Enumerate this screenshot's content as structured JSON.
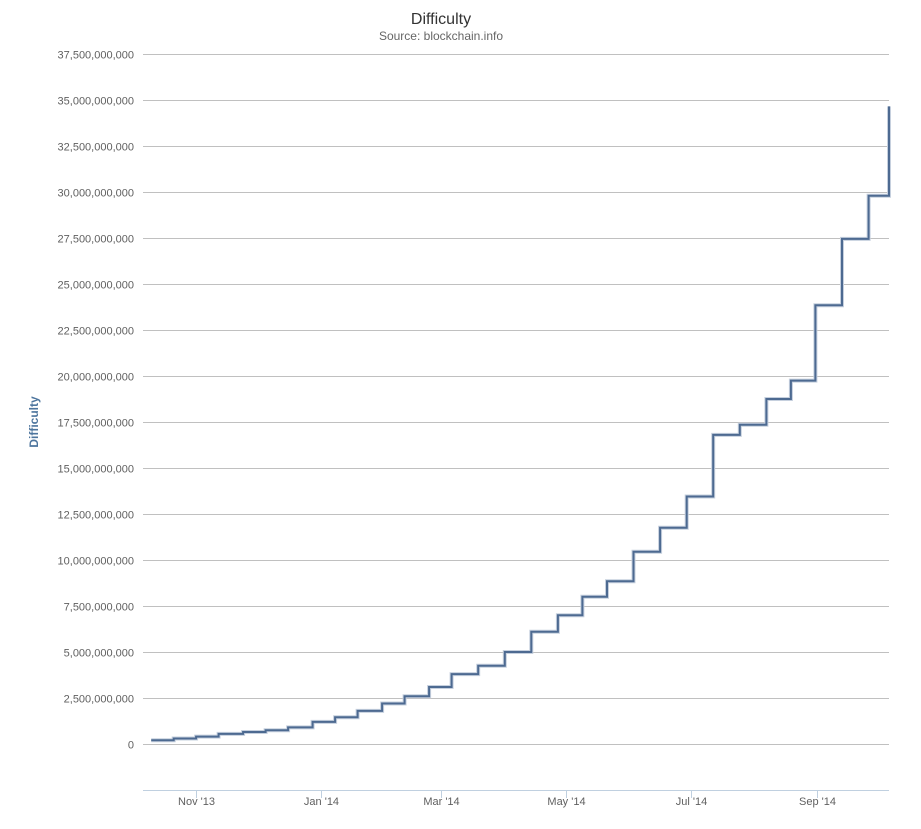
{
  "chart_data": {
    "type": "line",
    "step": true,
    "title": "Difficulty",
    "subtitle": "Source: blockchain.info",
    "ylabel": "Difficulty",
    "xlabel": "",
    "line_color": "#4d6a91",
    "grid": true,
    "legend": "none",
    "ylim": [
      -2500000000,
      37500000000
    ],
    "y_ticks": [
      0,
      2500000000,
      5000000000,
      7500000000,
      10000000000,
      12500000000,
      15000000000,
      17500000000,
      20000000000,
      22500000000,
      25000000000,
      27500000000,
      30000000000,
      32500000000,
      35000000000,
      37500000000
    ],
    "y_tick_labels": [
      "0",
      "2,500,000,000",
      "5,000,000,000",
      "7,500,000,000",
      "10,000,000,000",
      "12,500,000,000",
      "15,000,000,000",
      "17,500,000,000",
      "20,000,000,000",
      "22,500,000,000",
      "25,000,000,000",
      "27,500,000,000",
      "30,000,000,000",
      "32,500,000,000",
      "35,000,000,000",
      "37,500,000,000"
    ],
    "xlim": [
      "2013-10-06",
      "2014-10-06"
    ],
    "x_ticks": [
      "2013-11-01",
      "2014-01-01",
      "2014-03-01",
      "2014-05-01",
      "2014-07-01",
      "2014-09-01"
    ],
    "x_tick_labels": [
      "Nov '13",
      "Jan '14",
      "Mar '14",
      "May '14",
      "Jul '14",
      "Sep '14"
    ],
    "series": [
      {
        "x": [
          "2013-10-10",
          "2013-10-21",
          "2013-11-01",
          "2013-11-12",
          "2013-11-24",
          "2013-12-05",
          "2013-12-16",
          "2013-12-28",
          "2014-01-08",
          "2014-01-19",
          "2014-01-31",
          "2014-02-11",
          "2014-02-23",
          "2014-03-06",
          "2014-03-19",
          "2014-04-01",
          "2014-04-14",
          "2014-04-27",
          "2014-05-09",
          "2014-05-21",
          "2014-06-03",
          "2014-06-16",
          "2014-06-29",
          "2014-07-12",
          "2014-07-25",
          "2014-08-07",
          "2014-08-19",
          "2014-08-31",
          "2014-09-13",
          "2014-09-26",
          "2014-10-06"
        ],
        "y": [
          200000000,
          300000000,
          400000000,
          550000000,
          650000000,
          750000000,
          900000000,
          1200000000,
          1450000000,
          1800000000,
          2200000000,
          2600000000,
          3100000000,
          3800000000,
          4250000000,
          5000000000,
          6100000000,
          7000000000,
          8000000000,
          8850000000,
          10450000000,
          11750000000,
          13450000000,
          16800000000,
          17350000000,
          18750000000,
          19750000000,
          23850000000,
          27450000000,
          29800000000,
          34650000000
        ]
      }
    ]
  }
}
